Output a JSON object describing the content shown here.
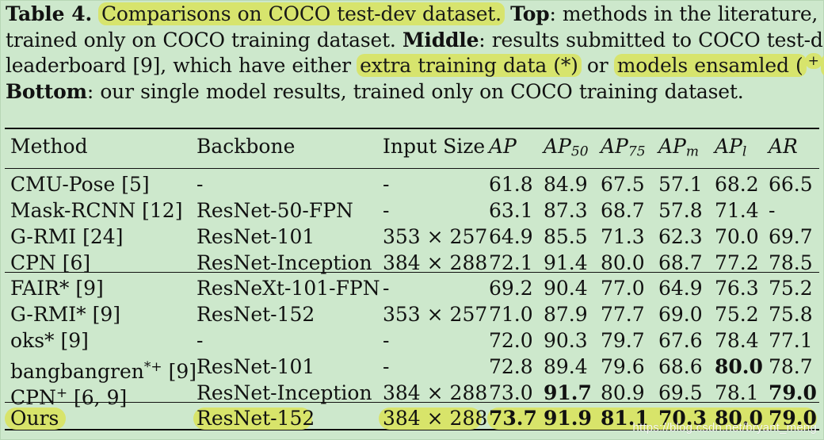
{
  "caption": {
    "lines": [
      [
        {
          "text": "Table 4. ",
          "bold": true,
          "highlight": false
        },
        {
          "text": "Comparisons on COCO test-dev dataset.",
          "bold": false,
          "highlight": true
        },
        {
          "text": " ",
          "bold": false,
          "highlight": false
        },
        {
          "text": "Top",
          "bold": true,
          "highlight": false
        },
        {
          "text": ": methods in the literature,",
          "bold": false,
          "highlight": false
        }
      ],
      [
        {
          "text": "trained only on COCO training dataset. ",
          "bold": false,
          "highlight": false
        },
        {
          "text": "Middle",
          "bold": true,
          "highlight": false
        },
        {
          "text": ": results submitted to COCO test-dev",
          "bold": false,
          "highlight": false
        }
      ],
      [
        {
          "text": "leaderboard [9], which have either ",
          "bold": false,
          "highlight": false
        },
        {
          "text": "extra training data (*)",
          "bold": false,
          "highlight": true
        },
        {
          "text": " or ",
          "bold": false,
          "highlight": false
        },
        {
          "text": "models ensamled (",
          "bold": false,
          "highlight": true
        },
        {
          "text": "+",
          "bold": false,
          "highlight": true,
          "sup": true
        },
        {
          "text": ").",
          "bold": false,
          "highlight": true
        }
      ],
      [
        {
          "text": "Bottom",
          "bold": true,
          "highlight": false
        },
        {
          "text": ": our single model results, trained only on COCO training dataset.",
          "bold": false,
          "highlight": false
        }
      ]
    ]
  },
  "table": {
    "headers": {
      "method": "Method",
      "backbone": "Backbone",
      "input_size": "Input Size",
      "ap": "AP",
      "ap50_main": "AP",
      "ap50_sub": "50",
      "ap75_main": "AP",
      "ap75_sub": "75",
      "apm_main": "AP",
      "apm_sub": "m",
      "apl_main": "AP",
      "apl_sub": "l",
      "ar": "AR"
    },
    "rows": [
      {
        "method": "CMU-Pose [5]",
        "backbone": "-",
        "input_size": "-",
        "ap": "61.8",
        "ap50": "84.9",
        "ap75": "67.5",
        "apm": "57.1",
        "apl": "68.2",
        "ar": "66.5",
        "group": "top"
      },
      {
        "method": "Mask-RCNN [12]",
        "backbone": "ResNet-50-FPN",
        "input_size": "-",
        "ap": "63.1",
        "ap50": "87.3",
        "ap75": "68.7",
        "apm": "57.8",
        "apl": "71.4",
        "ar": "-",
        "group": "top"
      },
      {
        "method": "G-RMI [24]",
        "backbone": "ResNet-101",
        "input_size": "353 × 257",
        "ap": "64.9",
        "ap50": "85.5",
        "ap75": "71.3",
        "apm": "62.3",
        "apl": "70.0",
        "ar": "69.7",
        "group": "top"
      },
      {
        "method": "CPN [6]",
        "backbone": "ResNet-Inception",
        "input_size": "384 × 288",
        "ap": "72.1",
        "ap50": "91.4",
        "ap75": "80.0",
        "apm": "68.7",
        "apl": "77.2",
        "ar": "78.5",
        "group": "top"
      },
      {
        "method": "FAIR* [9]",
        "backbone": "ResNeXt-101-FPN",
        "input_size": "-",
        "ap": "69.2",
        "ap50": "90.4",
        "ap75": "77.0",
        "apm": "64.9",
        "apl": "76.3",
        "ar": "75.2",
        "group": "middle"
      },
      {
        "method": "G-RMI* [9]",
        "backbone": "ResNet-152",
        "input_size": "353 × 257",
        "ap": "71.0",
        "ap50": "87.9",
        "ap75": "77.7",
        "apm": "69.0",
        "apl": "75.2",
        "ar": "75.8",
        "group": "middle"
      },
      {
        "method": "oks* [9]",
        "backbone": "-",
        "input_size": "-",
        "ap": "72.0",
        "ap50": "90.3",
        "ap75": "79.7",
        "apm": "67.6",
        "apl": "78.4",
        "ar": "77.1",
        "group": "middle"
      },
      {
        "method": "bangbangren",
        "method_sup": "*+",
        "method_tail": " [9]",
        "backbone": "ResNet-101",
        "input_size": "-",
        "ap": "72.8",
        "ap50": "89.4",
        "ap75": "79.6",
        "apm": "68.6",
        "apl": "80.0",
        "ar": "78.7",
        "group": "middle",
        "bold_cols": [
          "apl"
        ]
      },
      {
        "method": "CPN",
        "method_sup": "+",
        "method_tail": " [6, 9]",
        "backbone": "ResNet-Inception",
        "input_size": "384 × 288",
        "ap": "73.0",
        "ap50": "91.7",
        "ap75": "80.9",
        "apm": "69.5",
        "apl": "78.1",
        "ar": "79.0",
        "group": "middle",
        "bold_cols": [
          "ap50",
          "ar"
        ]
      },
      {
        "method": "Ours",
        "backbone": "ResNet-152",
        "input_size": "384 × 288",
        "ap": "73.7",
        "ap50": "91.9",
        "ap75": "81.1",
        "apm": "70.3",
        "apl": "80.0",
        "ar": "79.0",
        "group": "bottom",
        "bold_cols": [
          "ap",
          "ap50",
          "ap75",
          "apm",
          "apl",
          "ar"
        ],
        "highlight": true
      }
    ]
  },
  "watermark": "https://blog.csdn.net/bryant_meng",
  "colors": {
    "background": "#cde8cc",
    "highlight": "#d8e46a",
    "text": "#111111"
  }
}
